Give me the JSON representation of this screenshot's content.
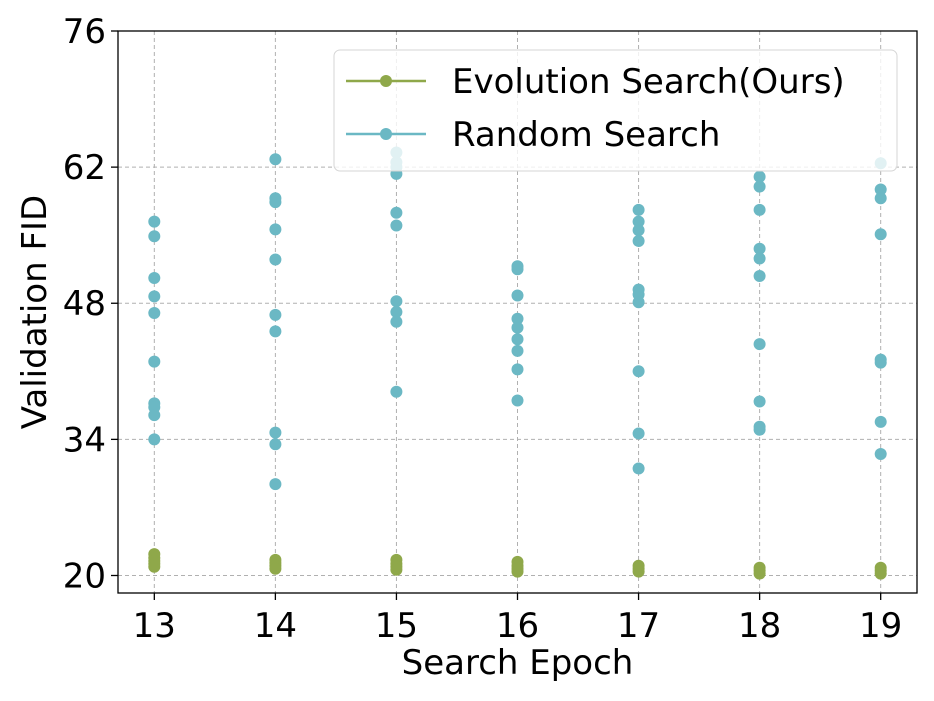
{
  "chart_data": {
    "type": "scatter",
    "xlabel": "Search Epoch",
    "ylabel": "Validation FID",
    "x_ticks": [
      13,
      14,
      15,
      16,
      17,
      18,
      19
    ],
    "y_ticks": [
      20,
      34,
      48,
      62,
      76
    ],
    "xlim": [
      12.7,
      19.3
    ],
    "ylim": [
      18.2,
      76
    ],
    "grid": true,
    "legend_position": "top-right",
    "series": [
      {
        "name": "Evolution Search(Ours)",
        "color": "#8fa84a",
        "points": [
          [
            13,
            22.2
          ],
          [
            13,
            21.8
          ],
          [
            13,
            21.5
          ],
          [
            13,
            21.2
          ],
          [
            13,
            20.9
          ],
          [
            14,
            21.6
          ],
          [
            14,
            21.3
          ],
          [
            14,
            21.0
          ],
          [
            14,
            20.7
          ],
          [
            15,
            21.6
          ],
          [
            15,
            21.2
          ],
          [
            15,
            20.9
          ],
          [
            15,
            20.6
          ],
          [
            16,
            21.4
          ],
          [
            16,
            21.0
          ],
          [
            16,
            20.7
          ],
          [
            16,
            20.4
          ],
          [
            17,
            21.0
          ],
          [
            17,
            20.7
          ],
          [
            17,
            20.4
          ],
          [
            18,
            20.8
          ],
          [
            18,
            20.5
          ],
          [
            18,
            20.2
          ],
          [
            19,
            20.8
          ],
          [
            19,
            20.5
          ],
          [
            19,
            20.2
          ]
        ]
      },
      {
        "name": "Random Search",
        "color": "#6bb8c4",
        "points": [
          [
            13,
            56.4
          ],
          [
            13,
            54.9
          ],
          [
            13,
            50.6
          ],
          [
            13,
            48.7
          ],
          [
            13,
            47.0
          ],
          [
            13,
            42.0
          ],
          [
            13,
            37.7
          ],
          [
            13,
            37.3
          ],
          [
            13,
            36.5
          ],
          [
            13,
            34.0
          ],
          [
            14,
            62.8
          ],
          [
            14,
            58.8
          ],
          [
            14,
            58.4
          ],
          [
            14,
            55.6
          ],
          [
            14,
            52.5
          ],
          [
            14,
            46.8
          ],
          [
            14,
            45.1
          ],
          [
            14,
            34.7
          ],
          [
            14,
            33.5
          ],
          [
            14,
            29.4
          ],
          [
            15,
            63.5
          ],
          [
            15,
            62.5
          ],
          [
            15,
            62.0
          ],
          [
            15,
            61.3
          ],
          [
            15,
            57.3
          ],
          [
            15,
            56.0
          ],
          [
            15,
            48.2
          ],
          [
            15,
            47.1
          ],
          [
            15,
            46.1
          ],
          [
            15,
            38.9
          ],
          [
            16,
            51.8
          ],
          [
            16,
            51.5
          ],
          [
            16,
            48.8
          ],
          [
            16,
            46.4
          ],
          [
            16,
            45.5
          ],
          [
            16,
            44.3
          ],
          [
            16,
            43.1
          ],
          [
            16,
            41.2
          ],
          [
            16,
            38.0
          ],
          [
            17,
            57.6
          ],
          [
            17,
            56.4
          ],
          [
            17,
            55.5
          ],
          [
            17,
            54.4
          ],
          [
            17,
            49.4
          ],
          [
            17,
            48.9
          ],
          [
            17,
            48.1
          ],
          [
            17,
            41.0
          ],
          [
            17,
            34.6
          ],
          [
            17,
            31.0
          ],
          [
            18,
            61.0
          ],
          [
            18,
            60.0
          ],
          [
            18,
            57.6
          ],
          [
            18,
            53.6
          ],
          [
            18,
            52.6
          ],
          [
            18,
            50.8
          ],
          [
            18,
            43.8
          ],
          [
            18,
            37.9
          ],
          [
            18,
            35.3
          ],
          [
            18,
            35.0
          ],
          [
            19,
            62.4
          ],
          [
            19,
            59.7
          ],
          [
            19,
            58.8
          ],
          [
            19,
            55.1
          ],
          [
            19,
            42.2
          ],
          [
            19,
            41.9
          ],
          [
            19,
            35.8
          ],
          [
            19,
            32.5
          ]
        ]
      }
    ]
  }
}
